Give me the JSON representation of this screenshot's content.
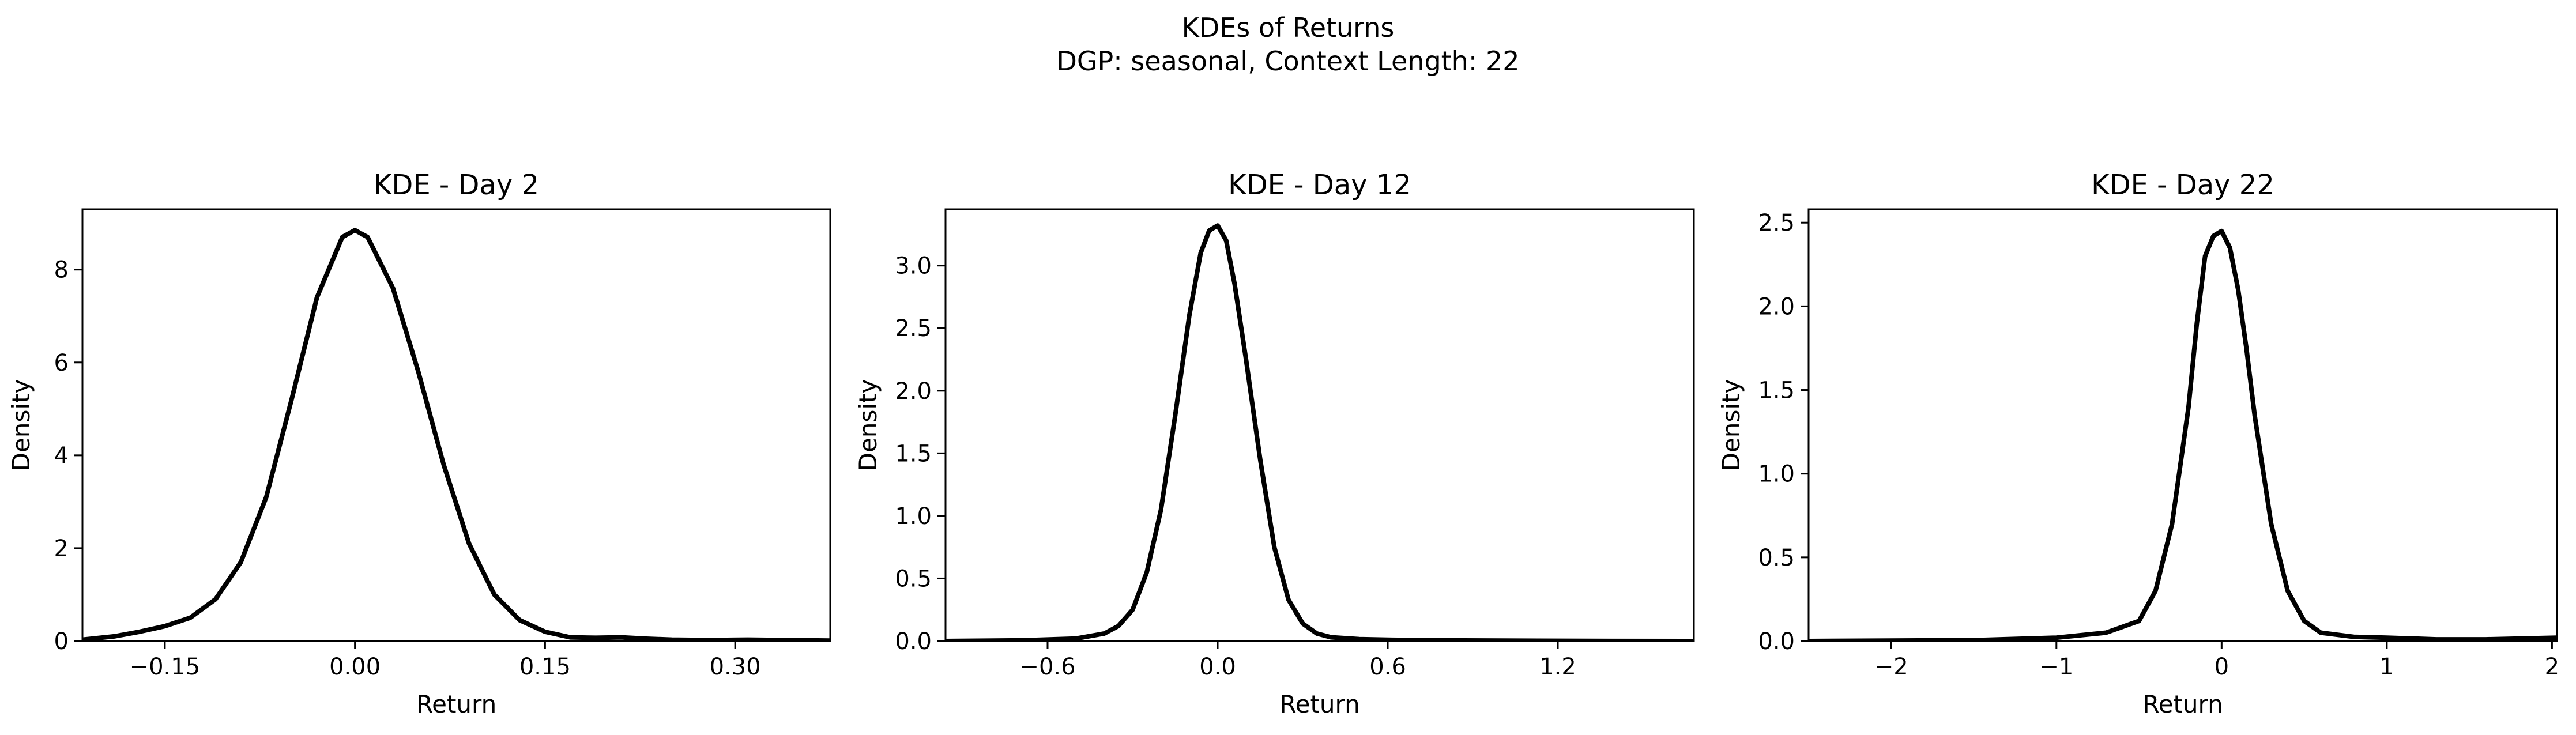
{
  "figure": {
    "suptitle_line1": "KDEs of Returns",
    "suptitle_line2": "DGP: seasonal, Context Length: 22"
  },
  "chart_data": [
    {
      "type": "line",
      "title": "KDE - Day 2",
      "xlabel": "Return",
      "ylabel": "Density",
      "xlim": [
        -0.215,
        0.375
      ],
      "ylim": [
        0,
        9.3
      ],
      "xticks": [
        -0.15,
        0.0,
        0.15,
        0.3
      ],
      "xtick_labels": [
        "−0.15",
        "0.00",
        "0.15",
        "0.30"
      ],
      "yticks": [
        0,
        2,
        4,
        6,
        8
      ],
      "ytick_labels": [
        "0",
        "2",
        "4",
        "6",
        "8"
      ],
      "line_color": "#000000",
      "grid": false,
      "series": [
        {
          "x": [
            -0.215,
            -0.19,
            -0.17,
            -0.15,
            -0.13,
            -0.11,
            -0.09,
            -0.07,
            -0.05,
            -0.03,
            -0.01,
            0.0,
            0.01,
            0.03,
            0.05,
            0.07,
            0.09,
            0.11,
            0.13,
            0.15,
            0.17,
            0.19,
            0.21,
            0.23,
            0.25,
            0.28,
            0.31,
            0.34,
            0.375
          ],
          "y": [
            0.03,
            0.1,
            0.2,
            0.32,
            0.5,
            0.9,
            1.7,
            3.1,
            5.2,
            7.4,
            8.7,
            8.85,
            8.7,
            7.6,
            5.8,
            3.8,
            2.1,
            1.0,
            0.45,
            0.2,
            0.08,
            0.07,
            0.08,
            0.05,
            0.03,
            0.02,
            0.03,
            0.02,
            0.01
          ]
        }
      ]
    },
    {
      "type": "line",
      "title": "KDE - Day 12",
      "xlabel": "Return",
      "ylabel": "Density",
      "xlim": [
        -0.96,
        1.68
      ],
      "ylim": [
        0,
        3.45
      ],
      "xticks": [
        -0.6,
        0.0,
        0.6,
        1.2
      ],
      "xtick_labels": [
        "−0.6",
        "0.0",
        "0.6",
        "1.2"
      ],
      "yticks": [
        0.0,
        0.5,
        1.0,
        1.5,
        2.0,
        2.5,
        3.0
      ],
      "ytick_labels": [
        "0.0",
        "0.5",
        "1.0",
        "1.5",
        "2.0",
        "2.5",
        "3.0"
      ],
      "line_color": "#000000",
      "grid": false,
      "series": [
        {
          "x": [
            -0.96,
            -0.7,
            -0.5,
            -0.4,
            -0.35,
            -0.3,
            -0.25,
            -0.2,
            -0.15,
            -0.1,
            -0.06,
            -0.03,
            0.0,
            0.03,
            0.06,
            0.1,
            0.15,
            0.2,
            0.25,
            0.3,
            0.35,
            0.4,
            0.5,
            0.6,
            0.8,
            1.0,
            1.3,
            1.68
          ],
          "y": [
            0.0,
            0.005,
            0.02,
            0.06,
            0.12,
            0.25,
            0.55,
            1.05,
            1.8,
            2.6,
            3.1,
            3.28,
            3.32,
            3.2,
            2.85,
            2.25,
            1.45,
            0.75,
            0.33,
            0.14,
            0.06,
            0.03,
            0.015,
            0.01,
            0.005,
            0.003,
            0.001,
            0.0
          ]
        }
      ]
    },
    {
      "type": "line",
      "title": "KDE - Day 22",
      "xlabel": "Return",
      "ylabel": "Density",
      "xlim": [
        -2.5,
        2.03
      ],
      "ylim": [
        0,
        2.58
      ],
      "xticks": [
        -2,
        -1,
        0,
        1,
        2
      ],
      "xtick_labels": [
        "−2",
        "−1",
        "0",
        "1",
        "2"
      ],
      "yticks": [
        0.0,
        0.5,
        1.0,
        1.5,
        2.0,
        2.5
      ],
      "ytick_labels": [
        "0.0",
        "0.5",
        "1.0",
        "1.5",
        "2.0",
        "2.5"
      ],
      "line_color": "#000000",
      "grid": false,
      "series": [
        {
          "x": [
            -2.5,
            -1.5,
            -1.0,
            -0.7,
            -0.5,
            -0.4,
            -0.3,
            -0.2,
            -0.15,
            -0.1,
            -0.05,
            0.0,
            0.05,
            0.1,
            0.15,
            0.2,
            0.3,
            0.4,
            0.5,
            0.6,
            0.8,
            1.0,
            1.3,
            1.6,
            2.03
          ],
          "y": [
            0.0,
            0.005,
            0.02,
            0.05,
            0.12,
            0.3,
            0.7,
            1.4,
            1.9,
            2.3,
            2.42,
            2.45,
            2.35,
            2.1,
            1.75,
            1.35,
            0.7,
            0.3,
            0.12,
            0.05,
            0.025,
            0.02,
            0.01,
            0.01,
            0.02
          ]
        }
      ]
    }
  ]
}
